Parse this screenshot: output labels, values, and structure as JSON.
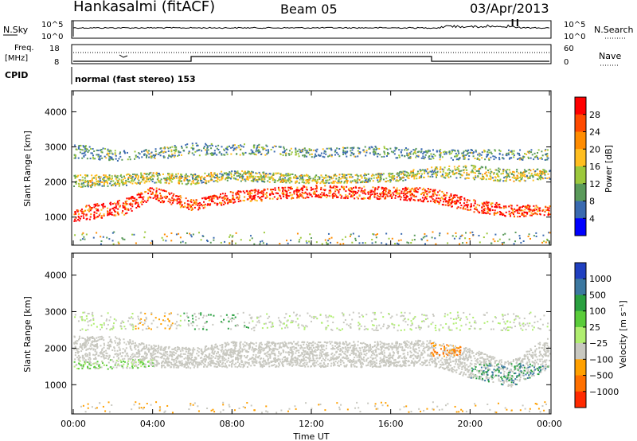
{
  "header": {
    "station": "Hankasalmi (fitACF)",
    "beam": "Beam 05",
    "date": "03/Apr/2013"
  },
  "noise_panel": {
    "left_label": "N.Sky",
    "right_label": "N.Search",
    "y_ticks": [
      "10^5",
      "10^0"
    ]
  },
  "freq_panel": {
    "left_label_1": "Freq.",
    "left_label_2": "[MHz]",
    "left_ticks": [
      "18",
      "8"
    ],
    "right_label": "Nave",
    "right_ticks": [
      "60",
      "0"
    ]
  },
  "cpid": {
    "label": "CPID",
    "program": "normal (fast stereo) 153"
  },
  "chart_data": [
    {
      "type": "heatmap",
      "name_ref": "power",
      "ylabel": "Slant Range [km]",
      "yticks": [
        "1000",
        "2000",
        "3000",
        "4000"
      ],
      "ylim": [
        200,
        4600
      ],
      "xlim": [
        "00:00",
        "24:00"
      ],
      "colorbar": {
        "label": "Power [dB]",
        "ticks": [
          "28",
          "24",
          "20",
          "16",
          "12",
          "8",
          "4"
        ],
        "colors": [
          "#ff0000",
          "#ff4a00",
          "#ff8c00",
          "#ffbe20",
          "#9cc83c",
          "#5a9a5a",
          "#3a6ab0",
          "#0000ff"
        ]
      },
      "scatter_bands": [
        {
          "t": [
            0,
            2.5,
            4,
            6,
            8,
            12,
            16,
            18,
            20,
            22,
            24
          ],
          "center": [
            1100,
            1300,
            1700,
            1350,
            1600,
            1750,
            1700,
            1650,
            1350,
            1200,
            1200
          ],
          "width": [
            400,
            450,
            400,
            300,
            350,
            350,
            350,
            400,
            350,
            350,
            300
          ],
          "level": "high"
        },
        {
          "t": [
            0,
            2,
            4,
            6,
            8,
            12,
            16,
            18,
            20,
            22,
            24
          ],
          "center": [
            2050,
            2050,
            2150,
            2100,
            2200,
            2100,
            2150,
            2300,
            2300,
            2200,
            2250
          ],
          "width": [
            350,
            350,
            300,
            300,
            300,
            250,
            250,
            300,
            400,
            350,
            300
          ],
          "level": "mid"
        },
        {
          "t": [
            0,
            3,
            6,
            9,
            12,
            15,
            18,
            21,
            24
          ],
          "center": [
            2900,
            2750,
            2950,
            2950,
            2850,
            2900,
            2800,
            2800,
            2800
          ],
          "width": [
            400,
            300,
            350,
            300,
            250,
            300,
            300,
            300,
            300
          ],
          "level": "low"
        }
      ]
    },
    {
      "type": "heatmap",
      "name_ref": "velocity",
      "ylabel": "Slant Range [km]",
      "yticks": [
        "1000",
        "2000",
        "3000",
        "4000"
      ],
      "ylim": [
        200,
        4600
      ],
      "xlabel": "Time UT",
      "xticks": [
        "00:00",
        "04:00",
        "08:00",
        "12:00",
        "16:00",
        "20:00",
        "00:00"
      ],
      "xlim": [
        "00:00",
        "24:00"
      ],
      "colorbar": {
        "label": "Velocity [m s⁻¹]",
        "ticks": [
          "1000",
          "500",
          "100",
          "25",
          "−25",
          "−100",
          "−500",
          "−1000"
        ],
        "colors": [
          "#2040c0",
          "#3c78a0",
          "#2aa040",
          "#5acc3a",
          "#b0ee70",
          "#c8c8c0",
          "#ffa000",
          "#ff7000",
          "#ff2a00"
        ]
      },
      "gray_band": {
        "t": [
          0,
          2,
          4,
          6,
          8,
          12,
          16,
          18,
          20,
          22,
          24
        ],
        "center": [
          1900,
          1900,
          1800,
          1750,
          1850,
          1850,
          1850,
          1900,
          1600,
          1300,
          1900
        ],
        "width": [
          900,
          900,
          600,
          550,
          700,
          700,
          700,
          700,
          800,
          700,
          900
        ]
      }
    }
  ]
}
